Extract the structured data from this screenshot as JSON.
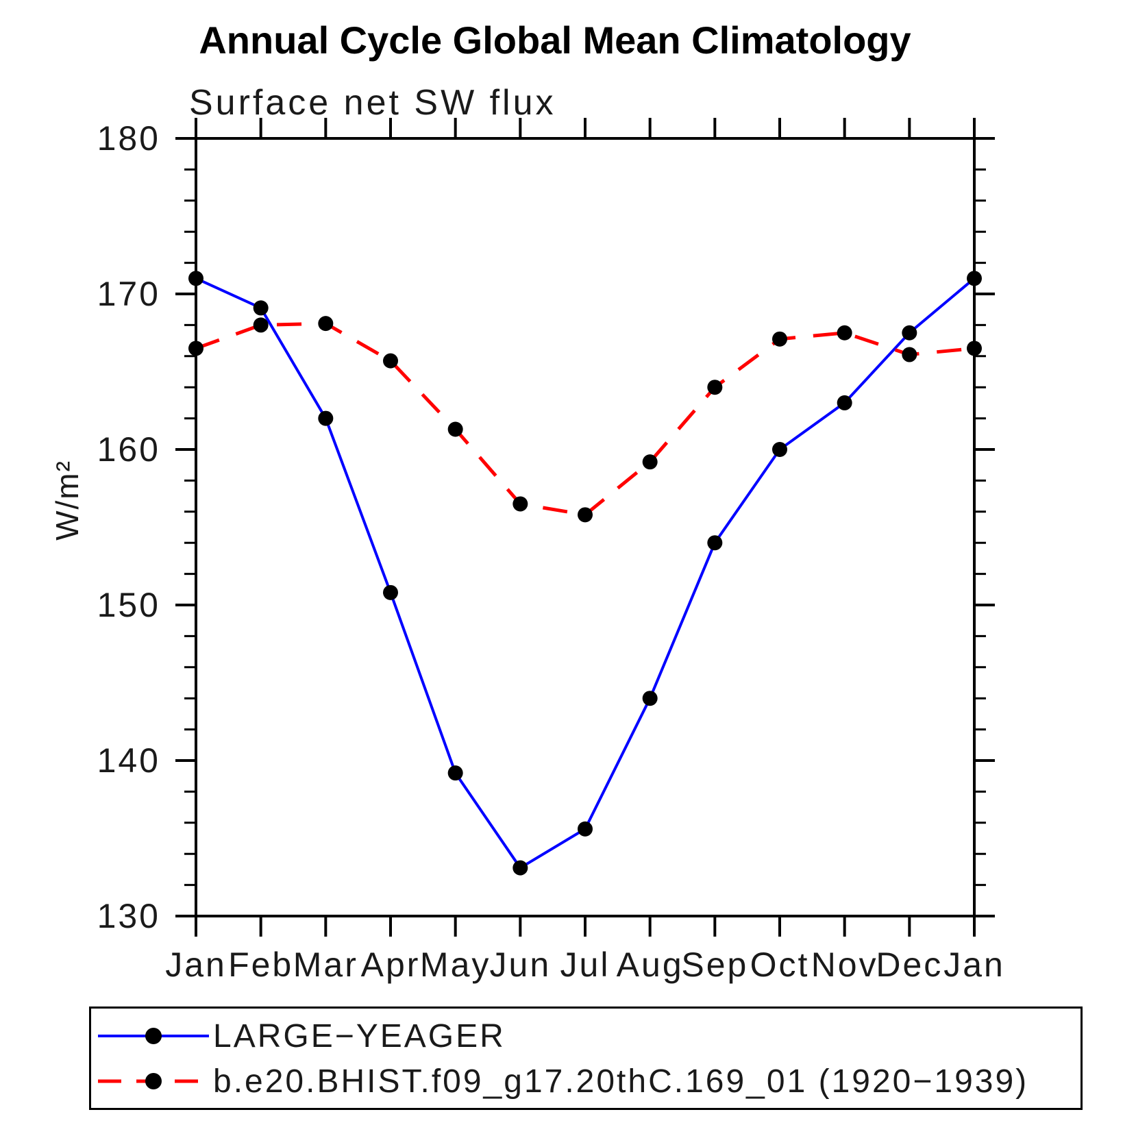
{
  "page_background": "#ffffff",
  "chart_data": {
    "type": "line",
    "title": "Annual Cycle Global Mean Climatology",
    "subtitle": "Surface net SW flux",
    "ylabel": "W/m²",
    "x_categories": [
      "Jan",
      "Feb",
      "Mar",
      "Apr",
      "May",
      "Jun",
      "Jul",
      "Aug",
      "Sep",
      "Oct",
      "Nov",
      "Dec",
      "Jan"
    ],
    "ylim": [
      130,
      180
    ],
    "ytick_major": [
      130,
      140,
      150,
      160,
      170,
      180
    ],
    "ytick_minor_step": 2,
    "grid": false,
    "legend_position": "bottom-box",
    "axis_color": "#000000",
    "marker": "filled-circle",
    "marker_color": "#000000",
    "series": [
      {
        "name": "LARGE−YEAGER",
        "color": "#0000ff",
        "line_style": "solid",
        "values": [
          171.0,
          169.1,
          162.0,
          150.8,
          139.2,
          133.1,
          135.6,
          144.0,
          154.0,
          160.0,
          163.0,
          167.5,
          171.0
        ]
      },
      {
        "name": "b.e20.BHIST.f09_g17.20thC.169_01 (1920−1939)",
        "color": "#ff0000",
        "line_style": "dashed",
        "values": [
          166.5,
          168.0,
          168.1,
          165.7,
          161.3,
          156.5,
          155.8,
          159.2,
          164.0,
          167.1,
          167.5,
          166.1,
          166.5
        ]
      }
    ]
  }
}
